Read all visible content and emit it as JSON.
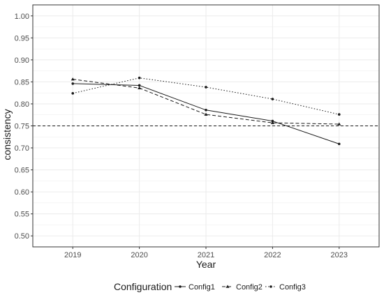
{
  "chart_data": {
    "type": "line",
    "xlabel": "Year",
    "ylabel": "consistency",
    "x": [
      "2019",
      "2020",
      "2021",
      "2022",
      "2023"
    ],
    "ylim": [
      0.475,
      1.025
    ],
    "yticks": [
      "0.50",
      "0.55",
      "0.60",
      "0.65",
      "0.70",
      "0.75",
      "0.80",
      "0.85",
      "0.90",
      "0.95",
      "1.00"
    ],
    "grid": true,
    "series": [
      {
        "name": "Config1",
        "line_style": "solid",
        "marker": "circle",
        "values": [
          0.846,
          0.842,
          0.786,
          0.761,
          0.709
        ]
      },
      {
        "name": "Config2",
        "line_style": "dashed",
        "marker": "triangle",
        "values": [
          0.856,
          0.836,
          0.776,
          0.757,
          0.754
        ]
      },
      {
        "name": "Config3",
        "line_style": "dotted",
        "marker": "circle",
        "values": [
          0.824,
          0.859,
          0.838,
          0.811,
          0.776
        ]
      }
    ],
    "reference_line": {
      "y": 0.75,
      "style": "dashed"
    },
    "legend": {
      "title": "Configuration",
      "position": "bottom"
    },
    "colors": {
      "series": "#1a1a1a",
      "grid": "#ebebeb",
      "border": "#333333"
    }
  }
}
